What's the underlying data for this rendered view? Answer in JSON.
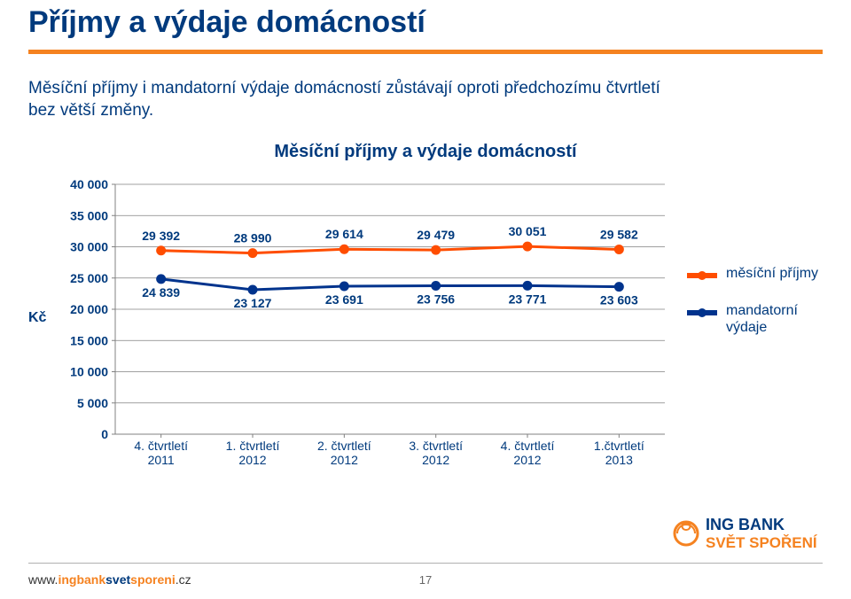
{
  "title": "Příjmy a výdaje domácností",
  "intro": "Měsíční příjmy i mandatorní výdaje domácností zůstávají oproti předchozímu čtvrtletí bez větší změny.",
  "chart": {
    "title": "Měsíční příjmy a výdaje domácností",
    "type": "line",
    "y_axis_unit": "Kč",
    "ylim": [
      0,
      40000
    ],
    "ytick_step": 5000,
    "yticks": [
      "0",
      "5 000",
      "10 000",
      "15 000",
      "20 000",
      "25 000",
      "30 000",
      "35 000",
      "40 000"
    ],
    "categories": [
      {
        "line1": "4. čtvrtletí",
        "line2": "2011"
      },
      {
        "line1": "1. čtvrtletí",
        "line2": "2012"
      },
      {
        "line1": "2. čtvrtletí",
        "line2": "2012"
      },
      {
        "line1": "3. čtvrtletí",
        "line2": "2012"
      },
      {
        "line1": "4. čtvrtletí",
        "line2": "2012"
      },
      {
        "line1": "1.čtvrtletí",
        "line2": "2013"
      }
    ],
    "series": [
      {
        "name": "měsíční příjmy",
        "color": "#ff4d00",
        "values": [
          29392,
          28990,
          29614,
          29479,
          30051,
          29582
        ],
        "labels": [
          "29 392",
          "28 990",
          "29 614",
          "29 479",
          "30 051",
          "29 582"
        ]
      },
      {
        "name": "mandatorní výdaje",
        "color": "#00338d",
        "values": [
          24839,
          23127,
          23691,
          23756,
          23771,
          23603
        ],
        "labels": [
          "24 839",
          "23 127",
          "23 691",
          "23 756",
          "23 771",
          "23 603"
        ]
      }
    ],
    "marker_radius": 5.5,
    "line_width": 3,
    "grid_color": "#808080",
    "background_color": "#ffffff",
    "text_color": "#003a7d"
  },
  "legend": [
    {
      "label": "měsíční příjmy",
      "color": "#ff4d00"
    },
    {
      "label": "mandatorní výdaje",
      "color": "#00338d"
    }
  ],
  "footer": {
    "url_prefix": "www.",
    "url_mid": "ingbank",
    "url_suffix1": "svet",
    "url_suffix2": "sporeni",
    "url_tld": ".cz",
    "logo_top": "ING BANK",
    "logo_bottom": "SVĚT SPOŘENÍ",
    "logo_color_top": "#003a7d",
    "logo_color_bottom": "#f58220"
  },
  "page_number": "17"
}
